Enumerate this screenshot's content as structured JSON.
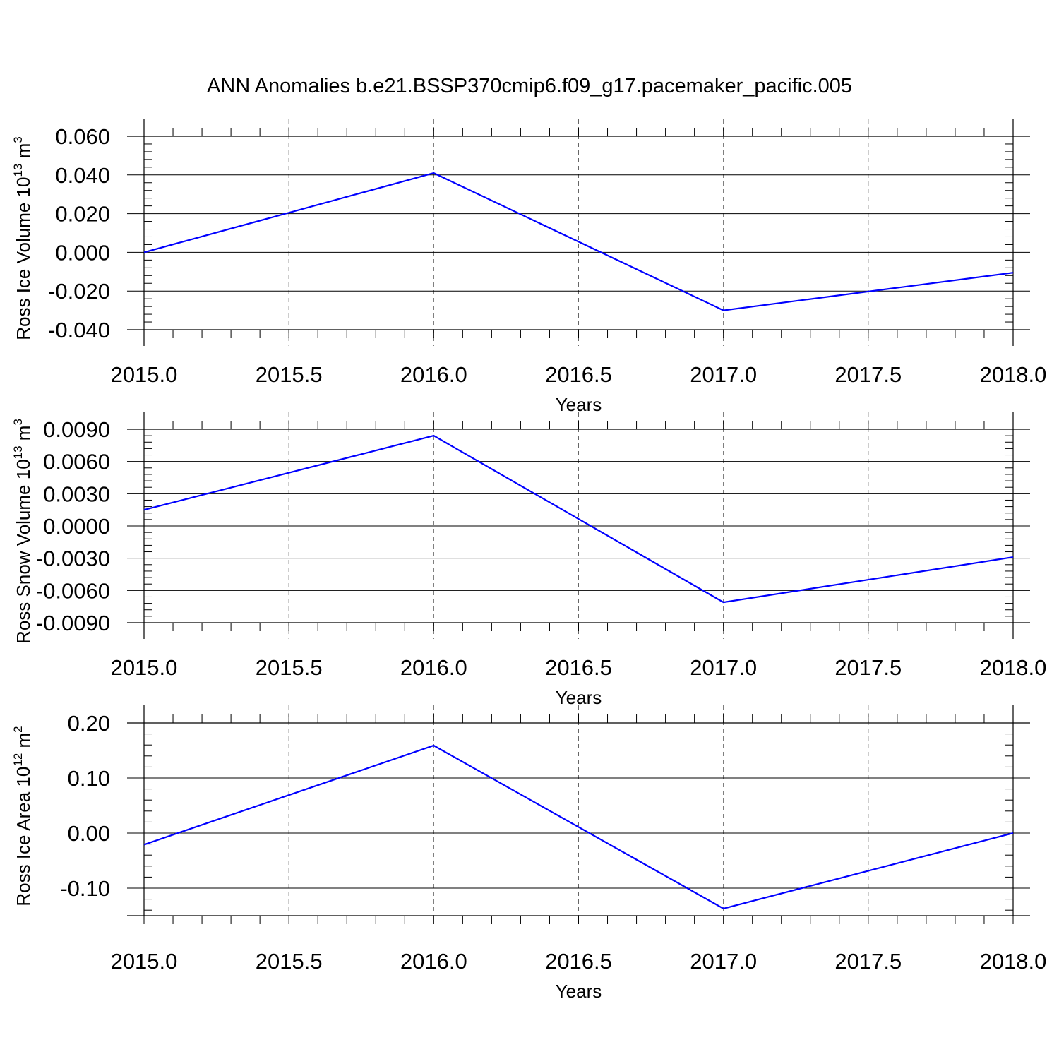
{
  "title": "ANN Anomalies b.e21.BSSP370cmip6.f09_g17.pacemaker_pacific.005",
  "colors": {
    "line": "#0000ff",
    "axis": "#000000",
    "grid": "#666666"
  },
  "chart_data": [
    {
      "type": "line",
      "title": "ANN Anomalies b.e21.BSSP370cmip6.f09_g17.pacemaker_pacific.005",
      "xlabel": "Years",
      "ylabel": {
        "text": "Ross Ice Volume 10",
        "sup": "13",
        "unit": " m",
        "unit_sup": "3"
      },
      "x": [
        2015.0,
        2016.0,
        2017.0,
        2018.0
      ],
      "series": [
        {
          "values": [
            0.0,
            0.041,
            -0.03,
            -0.0105
          ]
        }
      ],
      "xlim": [
        2015.0,
        2018.0
      ],
      "ylim": [
        -0.04,
        0.06
      ],
      "xticks": [
        2015.0,
        2015.5,
        2016.0,
        2016.5,
        2017.0,
        2017.5,
        2018.0
      ],
      "xtick_labels": [
        "2015.0",
        "2015.5",
        "2016.0",
        "2016.5",
        "2017.0",
        "2017.5",
        "2018.0"
      ],
      "yticks": [
        -0.04,
        -0.02,
        0.0,
        0.02,
        0.04,
        0.06
      ],
      "ytick_labels": [
        "-0.040",
        "-0.020",
        "0.000",
        "0.020",
        "0.040",
        "0.060"
      ],
      "grid": "vertical dashed"
    },
    {
      "type": "line",
      "xlabel": "Years",
      "ylabel": {
        "text": "Ross Snow Volume 10",
        "sup": "13",
        "unit": " m",
        "unit_sup": "3"
      },
      "x": [
        2015.0,
        2016.0,
        2017.0,
        2018.0
      ],
      "series": [
        {
          "values": [
            0.0015,
            0.0084,
            -0.0071,
            -0.0029
          ]
        }
      ],
      "xlim": [
        2015.0,
        2018.0
      ],
      "ylim": [
        -0.009,
        0.009
      ],
      "xticks": [
        2015.0,
        2015.5,
        2016.0,
        2016.5,
        2017.0,
        2017.5,
        2018.0
      ],
      "xtick_labels": [
        "2015.0",
        "2015.5",
        "2016.0",
        "2016.5",
        "2017.0",
        "2017.5",
        "2018.0"
      ],
      "yticks": [
        -0.009,
        -0.006,
        -0.003,
        0.0,
        0.003,
        0.006,
        0.009
      ],
      "ytick_labels": [
        "-0.0090",
        "-0.0060",
        "-0.0030",
        "0.0000",
        "0.0030",
        "0.0060",
        "0.0090"
      ],
      "grid": "vertical dashed"
    },
    {
      "type": "line",
      "xlabel": "Years",
      "ylabel": {
        "text": "Ross Ice Area 10",
        "sup": "12",
        "unit": " m",
        "unit_sup": "2"
      },
      "x": [
        2015.0,
        2016.0,
        2017.0,
        2018.0
      ],
      "series": [
        {
          "values": [
            -0.021,
            0.159,
            -0.137,
            0.0
          ]
        }
      ],
      "xlim": [
        2015.0,
        2018.0
      ],
      "ylim": [
        -0.15,
        0.2
      ],
      "xticks": [
        2015.0,
        2015.5,
        2016.0,
        2016.5,
        2017.0,
        2017.5,
        2018.0
      ],
      "xtick_labels": [
        "2015.0",
        "2015.5",
        "2016.0",
        "2016.5",
        "2017.0",
        "2017.5",
        "2018.0"
      ],
      "yticks": [
        -0.1,
        0.0,
        0.1,
        0.2
      ],
      "ytick_labels": [
        "-0.10",
        "0.00",
        "0.10",
        "0.20"
      ],
      "grid": "vertical dashed"
    }
  ]
}
